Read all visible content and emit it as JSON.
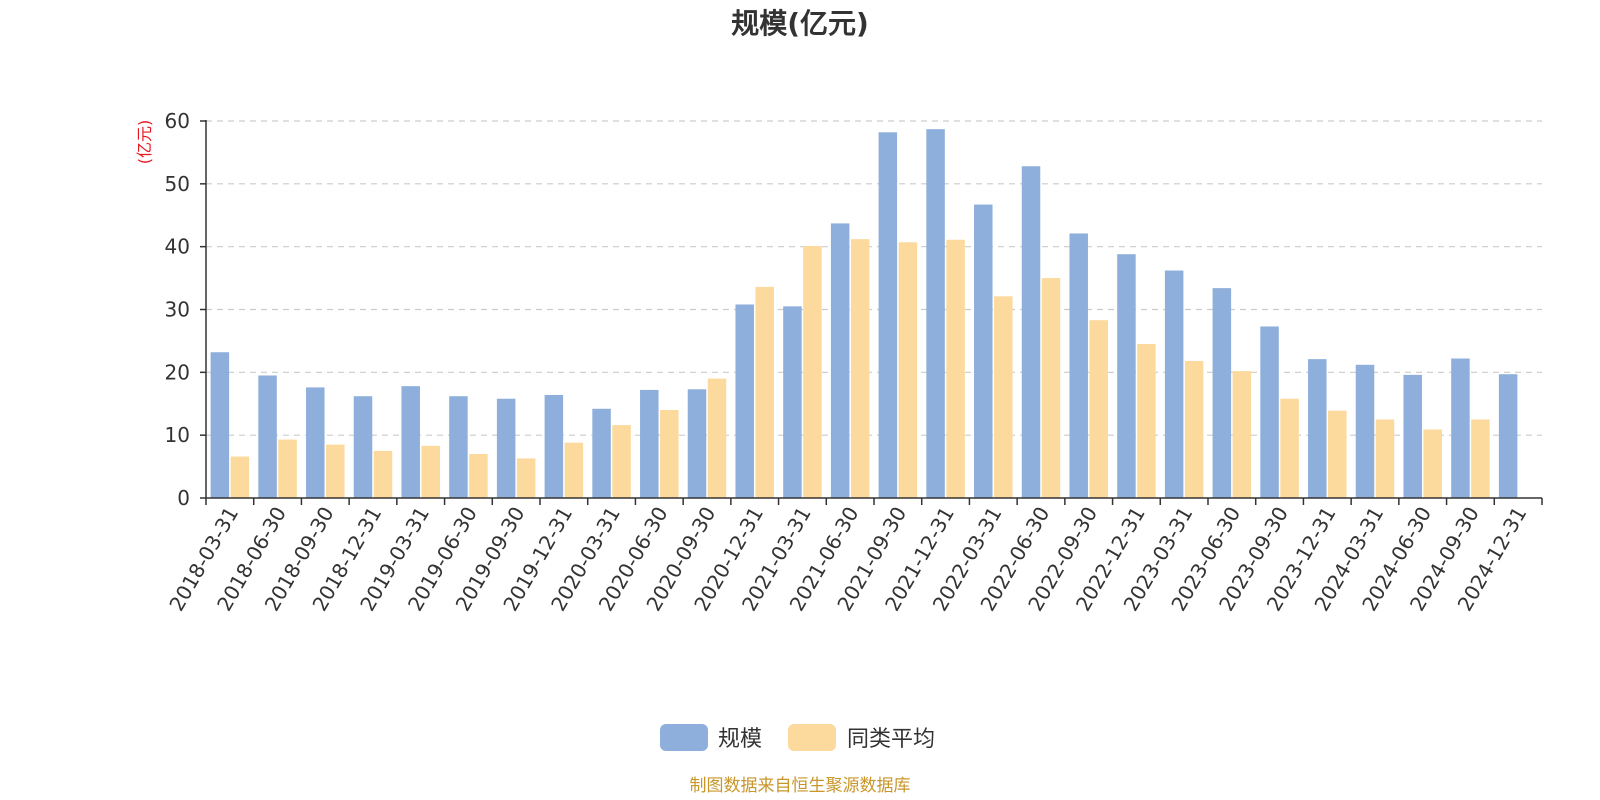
{
  "chart_data": {
    "type": "bar",
    "title": "规模(亿元)",
    "ylabel": "(亿元)",
    "xlabel": "",
    "ylim": [
      0,
      60
    ],
    "yticks": [
      0,
      10,
      20,
      30,
      40,
      50,
      60
    ],
    "grid": true,
    "legend_position": "bottom-center",
    "categories": [
      "2018-03-31",
      "2018-06-30",
      "2018-09-30",
      "2018-12-31",
      "2019-03-31",
      "2019-06-30",
      "2019-09-30",
      "2019-12-31",
      "2020-03-31",
      "2020-06-30",
      "2020-09-30",
      "2020-12-31",
      "2021-03-31",
      "2021-06-30",
      "2021-09-30",
      "2021-12-31",
      "2022-03-31",
      "2022-06-30",
      "2022-09-30",
      "2022-12-31",
      "2023-03-31",
      "2023-06-30",
      "2023-09-30",
      "2023-12-31",
      "2024-03-31",
      "2024-06-30",
      "2024-09-30",
      "2024-12-31"
    ],
    "series": [
      {
        "name": "规模",
        "color": "#8eaedc",
        "values": [
          23.2,
          19.5,
          17.6,
          16.2,
          17.8,
          16.2,
          15.8,
          16.4,
          14.2,
          17.2,
          17.3,
          30.8,
          30.5,
          43.7,
          58.2,
          58.7,
          46.7,
          52.8,
          42.1,
          38.8,
          36.2,
          33.4,
          27.3,
          22.1,
          21.2,
          19.6,
          22.2,
          19.7
        ]
      },
      {
        "name": "同类平均",
        "color": "#fcd99c",
        "values": [
          6.6,
          9.3,
          8.5,
          7.5,
          8.3,
          7.0,
          6.3,
          8.8,
          11.6,
          14.0,
          19.0,
          33.6,
          40.1,
          41.2,
          40.7,
          41.1,
          32.1,
          35.0,
          28.3,
          24.5,
          21.8,
          20.2,
          15.8,
          13.9,
          12.5,
          10.9,
          12.5,
          null
        ]
      }
    ],
    "source_text": "制图数据来自恒生聚源数据库",
    "colors": {
      "title": "#333333",
      "axis": "#333333",
      "grid": "#cccccc",
      "unit": "#e6161e",
      "source": "#c8962a"
    }
  }
}
